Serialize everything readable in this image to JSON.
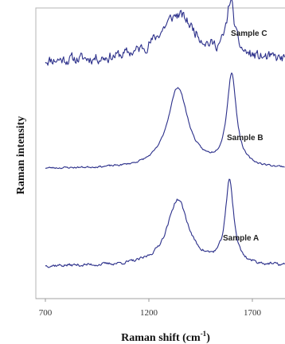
{
  "chart_data": {
    "type": "line",
    "xlabel": "Raman shift (cm",
    "xlabel_sup": "-1",
    "xlabel_close": ")",
    "ylabel": "Raman intensity",
    "xlim": [
      700,
      2000
    ],
    "xticks": [
      700,
      1200,
      1700
    ],
    "xtick_labels": [
      "700",
      "1200",
      "1700"
    ],
    "grid": false,
    "series": [
      {
        "name": "Sample C",
        "color": "#2b2f8a",
        "baseline": 0.82,
        "bands": [
          {
            "center": 1340,
            "height": 0.16,
            "width": 110
          },
          {
            "center": 1595,
            "height": 0.19,
            "width": 22
          }
        ],
        "noise": 0.035,
        "seed": 11
      },
      {
        "name": "Sample B",
        "color": "#2b2f8a",
        "baseline": 0.445,
        "bands": [
          {
            "center": 1340,
            "height": 0.28,
            "width": 60
          },
          {
            "center": 1600,
            "height": 0.32,
            "width": 28
          }
        ],
        "noise": 0.006,
        "seed": 23
      },
      {
        "name": "Sample A",
        "color": "#2b2f8a",
        "baseline": 0.105,
        "bands": [
          {
            "center": 1340,
            "height": 0.23,
            "width": 62
          },
          {
            "center": 1590,
            "height": 0.29,
            "width": 24
          }
        ],
        "noise": 0.01,
        "seed": 37
      }
    ]
  }
}
